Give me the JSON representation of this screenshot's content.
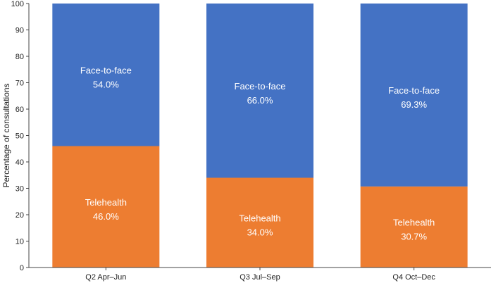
{
  "chart_data": {
    "type": "bar",
    "stacked": true,
    "categories": [
      "Q2 Apr–Jun",
      "Q3 Jul–Sep",
      "Q4 Oct–Dec"
    ],
    "series": [
      {
        "name": "Telehealth",
        "values": [
          46.0,
          34.0,
          30.7
        ],
        "value_labels": [
          "46.0%",
          "34.0%",
          "30.7%"
        ],
        "color": "#ED7D31"
      },
      {
        "name": "Face-to-face",
        "values": [
          54.0,
          66.0,
          69.3
        ],
        "value_labels": [
          "54.0%",
          "66.0%",
          "69.3%"
        ],
        "color": "#4472C4"
      }
    ],
    "ylabel": "Percentage of consultations",
    "ylim": [
      0,
      100
    ],
    "yticks": [
      0,
      10,
      20,
      30,
      40,
      50,
      60,
      70,
      80,
      90,
      100
    ],
    "grid": false,
    "legend": "none"
  }
}
